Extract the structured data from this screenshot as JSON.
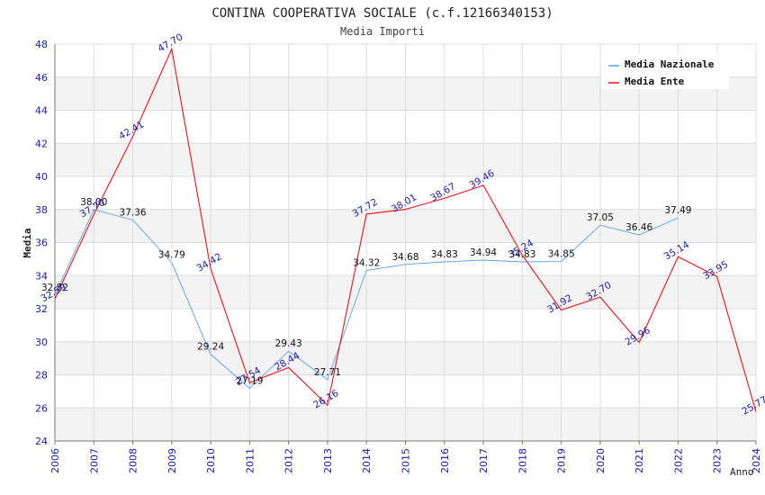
{
  "chart_data": {
    "type": "line",
    "title": "CONTINA COOPERATIVA SOCIALE (c.f.12166340153)",
    "subtitle": "Media Importi",
    "xlabel": "Anno",
    "ylabel": "Media",
    "ylim": [
      24,
      48
    ],
    "yticks": [
      "24",
      "26",
      "28",
      "30",
      "32",
      "34",
      "36",
      "38",
      "40",
      "42",
      "44",
      "46",
      "48"
    ],
    "x": [
      "2006",
      "2007",
      "2008",
      "2009",
      "2010",
      "2011",
      "2012",
      "2013",
      "2014",
      "2015",
      "2016",
      "2017",
      "2018",
      "2019",
      "2020",
      "2021",
      "2022",
      "2023",
      "2024"
    ],
    "legend_position": "top-right",
    "series": [
      {
        "name": "Media Nazionale",
        "color": "#5aa0e6",
        "label_color": "#111111",
        "values": [
          32.82,
          38.0,
          37.36,
          34.79,
          29.24,
          27.19,
          29.43,
          27.71,
          34.32,
          34.68,
          34.83,
          34.94,
          34.83,
          34.85,
          37.05,
          36.46,
          37.49,
          null,
          null
        ],
        "labels": [
          "32.82",
          "38.00",
          "37.36",
          "34.79",
          "29.24",
          "27.19",
          "29.43",
          "27.71",
          "34.32",
          "34.68",
          "34.83",
          "34.94",
          "34.83",
          "34.85",
          "37.05",
          "36.46",
          "37.49",
          "",
          ""
        ]
      },
      {
        "name": "Media Ente",
        "color": "#e8131a",
        "label_color": "#1a1aa6",
        "values": [
          32.59,
          37.7,
          42.41,
          47.7,
          34.42,
          27.54,
          28.44,
          26.16,
          37.72,
          38.01,
          38.67,
          39.46,
          35.24,
          31.92,
          32.7,
          29.96,
          35.14,
          33.95,
          25.77
        ],
        "labels": [
          "32.59",
          "37.70",
          "42.41",
          "47.70",
          "34.42",
          "27.54",
          "28.44",
          "26.16",
          "37.72",
          "38.01",
          "38.67",
          "39.46",
          "35.24",
          "31.92",
          "32.70",
          "29.96",
          "35.14",
          "33.95",
          "25.77"
        ]
      }
    ]
  }
}
